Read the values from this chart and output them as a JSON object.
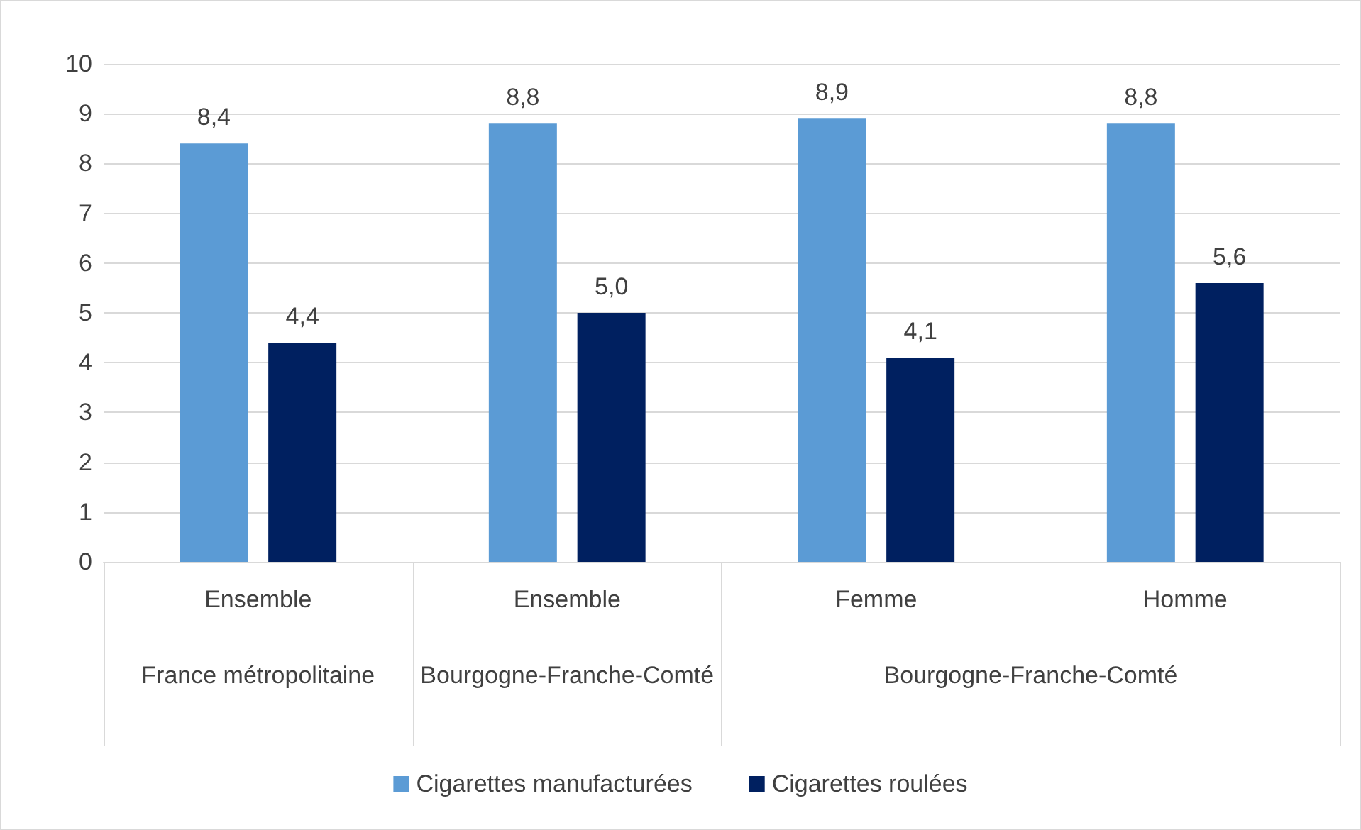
{
  "chart_data": {
    "type": "bar",
    "categories": [
      "Ensemble",
      "Ensemble",
      "Femme",
      "Homme"
    ],
    "annotations": [
      "France métropolitaine",
      "Bourgogne-Franche-Comté",
      "Bourgogne-Franche-Comté"
    ],
    "series": [
      {
        "name": "Cigarettes manufacturées",
        "color": "#5b9bd5",
        "values": [
          8.4,
          8.8,
          8.9,
          8.8
        ],
        "value_labels": [
          "8,4",
          "8,8",
          "8,9",
          "8,8"
        ]
      },
      {
        "name": "Cigarettes roulées",
        "color": "#002060",
        "values": [
          4.4,
          5.0,
          4.1,
          5.6
        ],
        "value_labels": [
          "4,4",
          "5,0",
          "4,1",
          "5,6"
        ]
      }
    ],
    "ylim": [
      0,
      10
    ],
    "yticks": [
      0,
      1,
      2,
      3,
      4,
      5,
      6,
      7,
      8,
      9,
      10
    ],
    "grid": "y",
    "legend": "bottom"
  }
}
